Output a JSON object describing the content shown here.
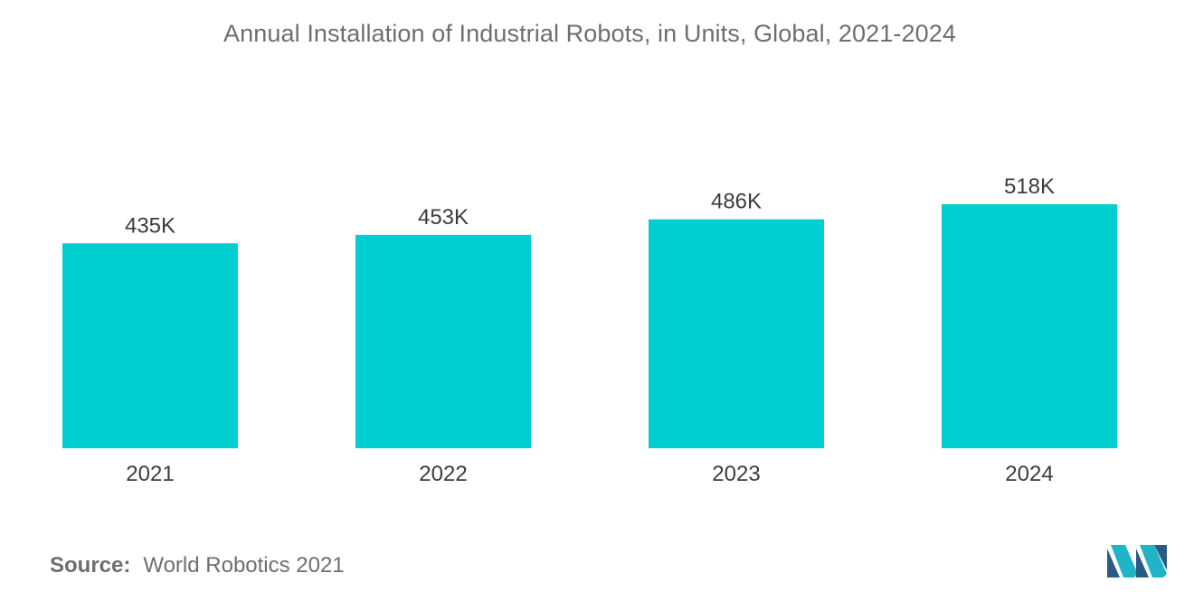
{
  "chart_data": {
    "type": "bar",
    "title": "Annual Installation of Industrial Robots, in Units, Global, 2021-2024",
    "categories": [
      "2021",
      "2022",
      "2023",
      "2024"
    ],
    "values": [
      435,
      453,
      486,
      518
    ],
    "data_labels": [
      "435K",
      "453K",
      "486K",
      "518K"
    ],
    "unit": "K",
    "ylim": [
      0,
      518
    ],
    "grid": false,
    "legend": "none",
    "bar_color": "#00ced1"
  },
  "source": {
    "label": "Source:",
    "text": "World Robotics 2021"
  },
  "logo": {
    "icon": "mordor-intelligence-logo-icon",
    "colors": [
      "#2a5b84",
      "#1fb5c9"
    ]
  }
}
